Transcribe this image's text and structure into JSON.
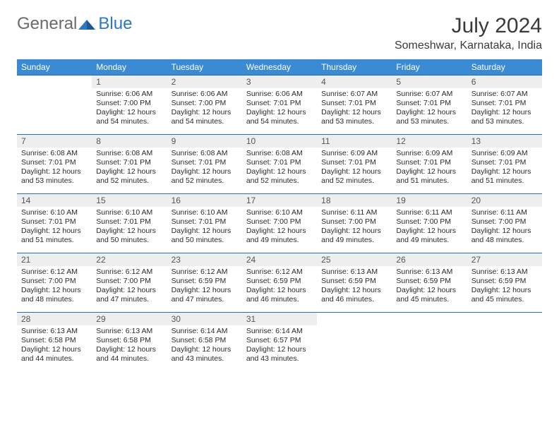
{
  "logo": {
    "general": "General",
    "blue": "Blue"
  },
  "title": "July 2024",
  "location": "Someshwar, Karnataka, India",
  "colors": {
    "headerBg": "#3b8bd4",
    "headerText": "#ffffff",
    "dayNumBg": "#eeeeee",
    "dayNumText": "#555555",
    "weekBorder": "#2a6db0",
    "bodyText": "#2a2a2a",
    "logoGray": "#6b6b6b",
    "logoBlue": "#2a78c2"
  },
  "dayHeaders": [
    "Sunday",
    "Monday",
    "Tuesday",
    "Wednesday",
    "Thursday",
    "Friday",
    "Saturday"
  ],
  "weeks": [
    [
      null,
      {
        "n": "1",
        "sr": "Sunrise: 6:06 AM",
        "ss": "Sunset: 7:00 PM",
        "d1": "Daylight: 12 hours",
        "d2": "and 54 minutes."
      },
      {
        "n": "2",
        "sr": "Sunrise: 6:06 AM",
        "ss": "Sunset: 7:00 PM",
        "d1": "Daylight: 12 hours",
        "d2": "and 54 minutes."
      },
      {
        "n": "3",
        "sr": "Sunrise: 6:06 AM",
        "ss": "Sunset: 7:01 PM",
        "d1": "Daylight: 12 hours",
        "d2": "and 54 minutes."
      },
      {
        "n": "4",
        "sr": "Sunrise: 6:07 AM",
        "ss": "Sunset: 7:01 PM",
        "d1": "Daylight: 12 hours",
        "d2": "and 53 minutes."
      },
      {
        "n": "5",
        "sr": "Sunrise: 6:07 AM",
        "ss": "Sunset: 7:01 PM",
        "d1": "Daylight: 12 hours",
        "d2": "and 53 minutes."
      },
      {
        "n": "6",
        "sr": "Sunrise: 6:07 AM",
        "ss": "Sunset: 7:01 PM",
        "d1": "Daylight: 12 hours",
        "d2": "and 53 minutes."
      }
    ],
    [
      {
        "n": "7",
        "sr": "Sunrise: 6:08 AM",
        "ss": "Sunset: 7:01 PM",
        "d1": "Daylight: 12 hours",
        "d2": "and 53 minutes."
      },
      {
        "n": "8",
        "sr": "Sunrise: 6:08 AM",
        "ss": "Sunset: 7:01 PM",
        "d1": "Daylight: 12 hours",
        "d2": "and 52 minutes."
      },
      {
        "n": "9",
        "sr": "Sunrise: 6:08 AM",
        "ss": "Sunset: 7:01 PM",
        "d1": "Daylight: 12 hours",
        "d2": "and 52 minutes."
      },
      {
        "n": "10",
        "sr": "Sunrise: 6:08 AM",
        "ss": "Sunset: 7:01 PM",
        "d1": "Daylight: 12 hours",
        "d2": "and 52 minutes."
      },
      {
        "n": "11",
        "sr": "Sunrise: 6:09 AM",
        "ss": "Sunset: 7:01 PM",
        "d1": "Daylight: 12 hours",
        "d2": "and 52 minutes."
      },
      {
        "n": "12",
        "sr": "Sunrise: 6:09 AM",
        "ss": "Sunset: 7:01 PM",
        "d1": "Daylight: 12 hours",
        "d2": "and 51 minutes."
      },
      {
        "n": "13",
        "sr": "Sunrise: 6:09 AM",
        "ss": "Sunset: 7:01 PM",
        "d1": "Daylight: 12 hours",
        "d2": "and 51 minutes."
      }
    ],
    [
      {
        "n": "14",
        "sr": "Sunrise: 6:10 AM",
        "ss": "Sunset: 7:01 PM",
        "d1": "Daylight: 12 hours",
        "d2": "and 51 minutes."
      },
      {
        "n": "15",
        "sr": "Sunrise: 6:10 AM",
        "ss": "Sunset: 7:01 PM",
        "d1": "Daylight: 12 hours",
        "d2": "and 50 minutes."
      },
      {
        "n": "16",
        "sr": "Sunrise: 6:10 AM",
        "ss": "Sunset: 7:01 PM",
        "d1": "Daylight: 12 hours",
        "d2": "and 50 minutes."
      },
      {
        "n": "17",
        "sr": "Sunrise: 6:10 AM",
        "ss": "Sunset: 7:00 PM",
        "d1": "Daylight: 12 hours",
        "d2": "and 49 minutes."
      },
      {
        "n": "18",
        "sr": "Sunrise: 6:11 AM",
        "ss": "Sunset: 7:00 PM",
        "d1": "Daylight: 12 hours",
        "d2": "and 49 minutes."
      },
      {
        "n": "19",
        "sr": "Sunrise: 6:11 AM",
        "ss": "Sunset: 7:00 PM",
        "d1": "Daylight: 12 hours",
        "d2": "and 49 minutes."
      },
      {
        "n": "20",
        "sr": "Sunrise: 6:11 AM",
        "ss": "Sunset: 7:00 PM",
        "d1": "Daylight: 12 hours",
        "d2": "and 48 minutes."
      }
    ],
    [
      {
        "n": "21",
        "sr": "Sunrise: 6:12 AM",
        "ss": "Sunset: 7:00 PM",
        "d1": "Daylight: 12 hours",
        "d2": "and 48 minutes."
      },
      {
        "n": "22",
        "sr": "Sunrise: 6:12 AM",
        "ss": "Sunset: 7:00 PM",
        "d1": "Daylight: 12 hours",
        "d2": "and 47 minutes."
      },
      {
        "n": "23",
        "sr": "Sunrise: 6:12 AM",
        "ss": "Sunset: 6:59 PM",
        "d1": "Daylight: 12 hours",
        "d2": "and 47 minutes."
      },
      {
        "n": "24",
        "sr": "Sunrise: 6:12 AM",
        "ss": "Sunset: 6:59 PM",
        "d1": "Daylight: 12 hours",
        "d2": "and 46 minutes."
      },
      {
        "n": "25",
        "sr": "Sunrise: 6:13 AM",
        "ss": "Sunset: 6:59 PM",
        "d1": "Daylight: 12 hours",
        "d2": "and 46 minutes."
      },
      {
        "n": "26",
        "sr": "Sunrise: 6:13 AM",
        "ss": "Sunset: 6:59 PM",
        "d1": "Daylight: 12 hours",
        "d2": "and 45 minutes."
      },
      {
        "n": "27",
        "sr": "Sunrise: 6:13 AM",
        "ss": "Sunset: 6:59 PM",
        "d1": "Daylight: 12 hours",
        "d2": "and 45 minutes."
      }
    ],
    [
      {
        "n": "28",
        "sr": "Sunrise: 6:13 AM",
        "ss": "Sunset: 6:58 PM",
        "d1": "Daylight: 12 hours",
        "d2": "and 44 minutes."
      },
      {
        "n": "29",
        "sr": "Sunrise: 6:13 AM",
        "ss": "Sunset: 6:58 PM",
        "d1": "Daylight: 12 hours",
        "d2": "and 44 minutes."
      },
      {
        "n": "30",
        "sr": "Sunrise: 6:14 AM",
        "ss": "Sunset: 6:58 PM",
        "d1": "Daylight: 12 hours",
        "d2": "and 43 minutes."
      },
      {
        "n": "31",
        "sr": "Sunrise: 6:14 AM",
        "ss": "Sunset: 6:57 PM",
        "d1": "Daylight: 12 hours",
        "d2": "and 43 minutes."
      },
      null,
      null,
      null
    ]
  ]
}
